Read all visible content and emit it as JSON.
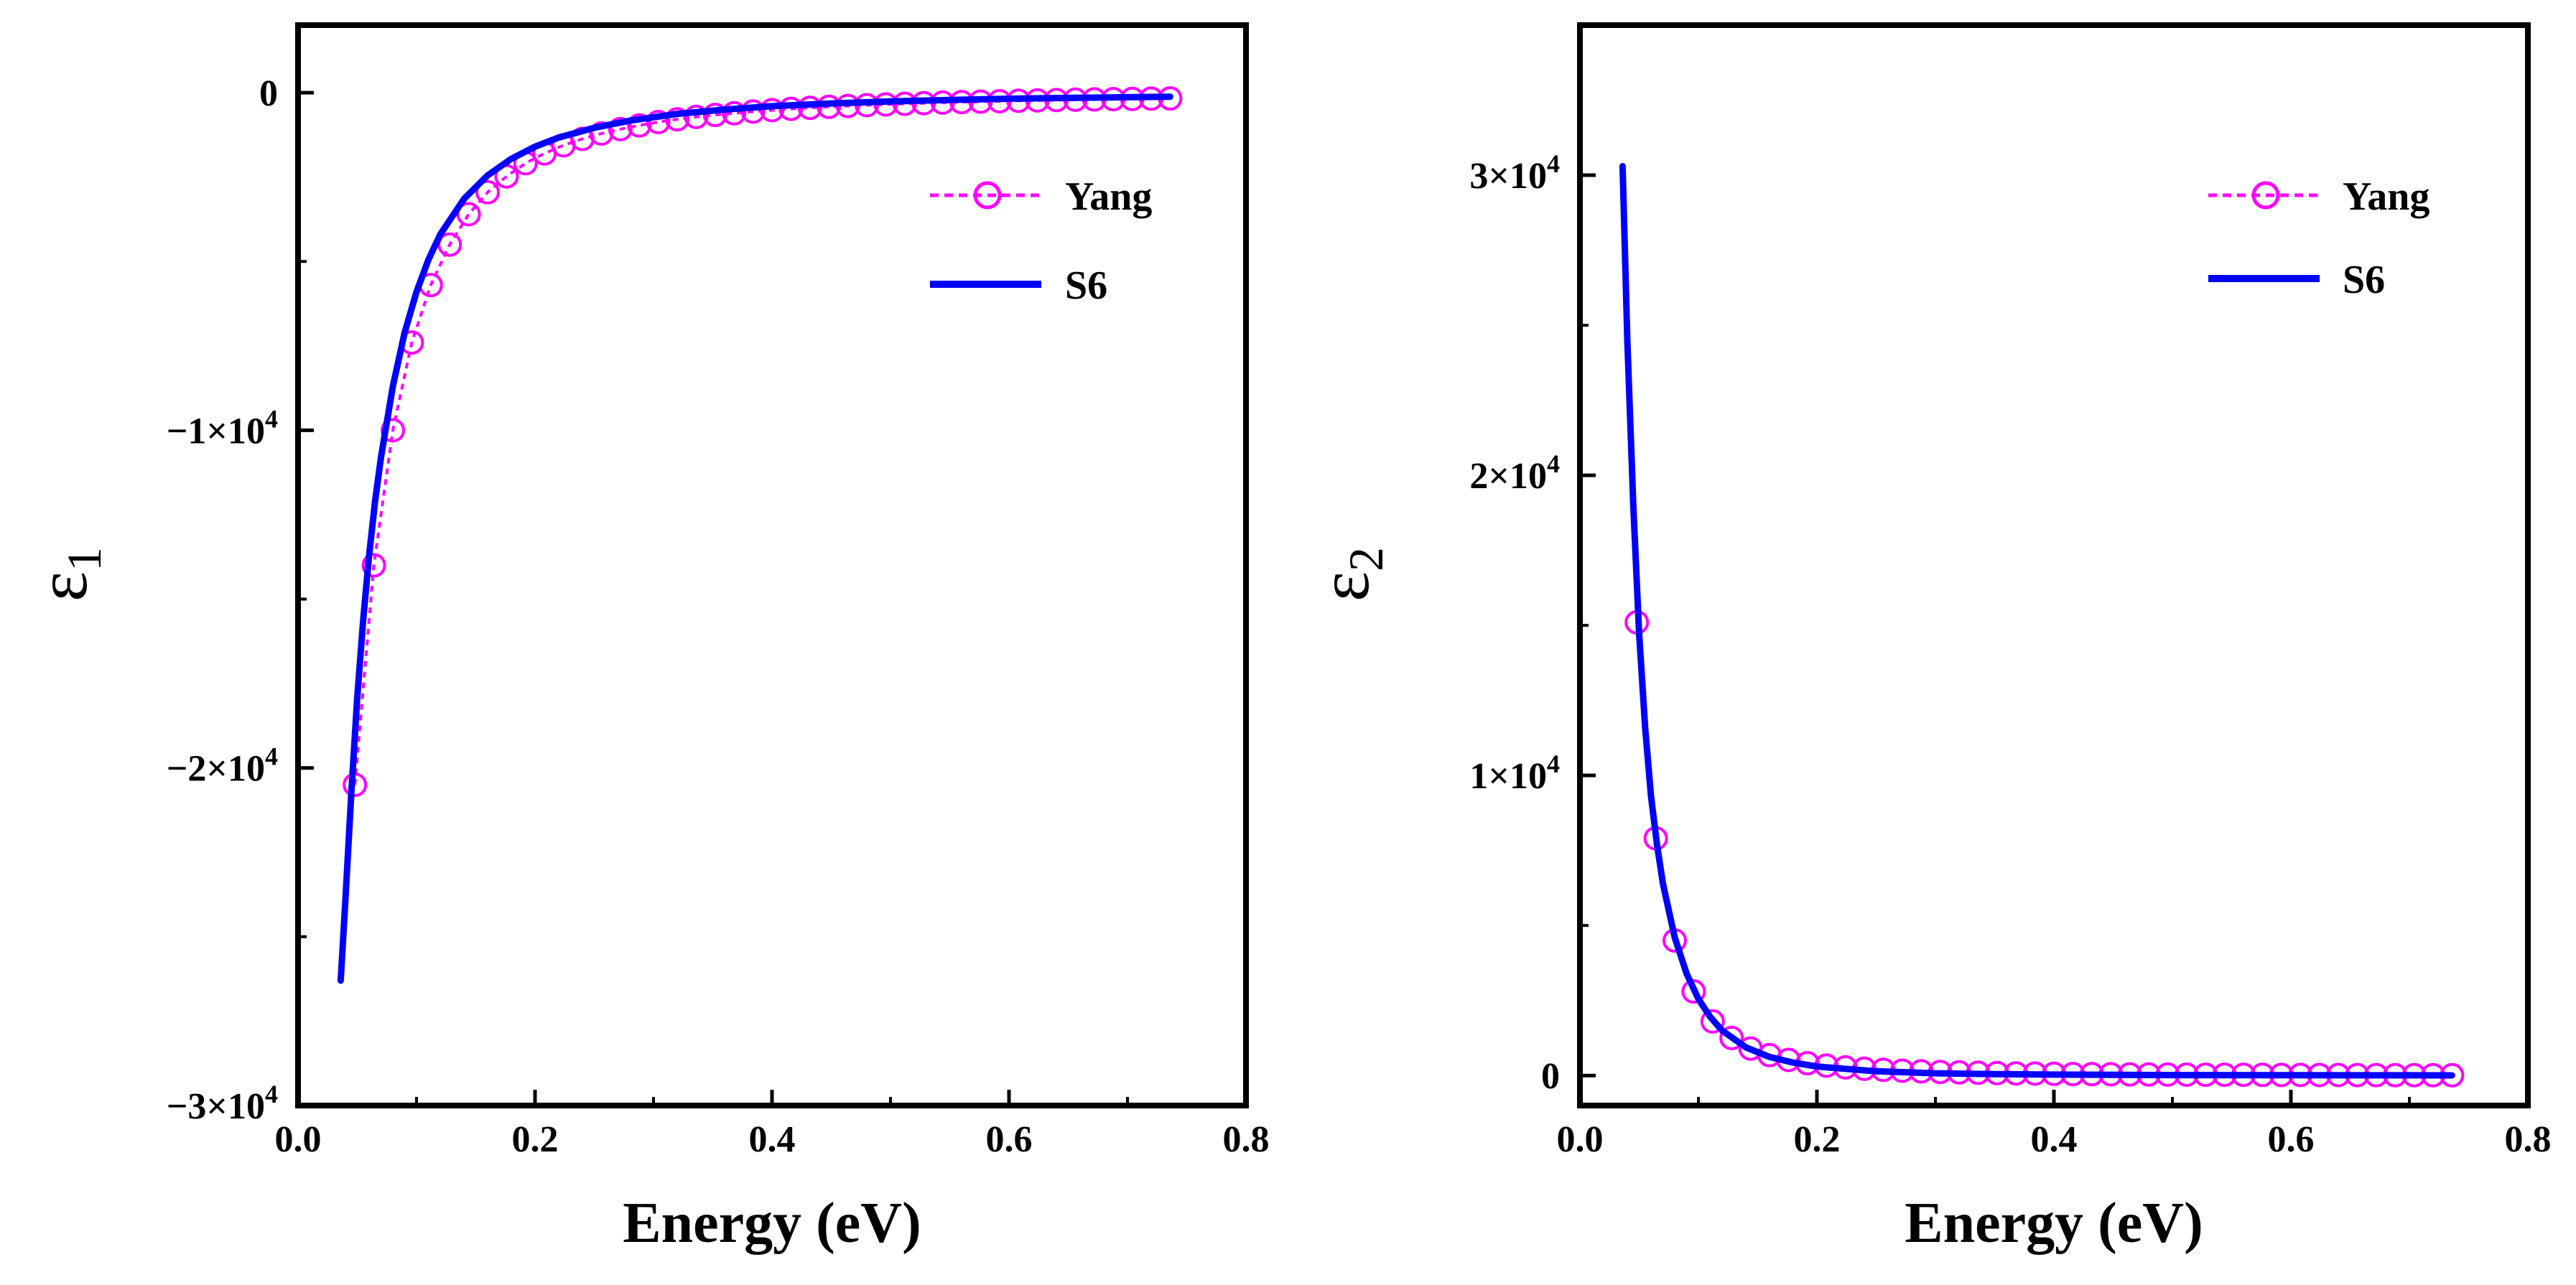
{
  "chart_data": [
    {
      "type": "line",
      "panel": "left",
      "title": "",
      "xlabel": "Energy (eV)",
      "ylabel": {
        "symbol": "ε",
        "subscript": "1"
      },
      "xlim": [
        0,
        0.8
      ],
      "ylim": [
        -30000,
        2000
      ],
      "x_ticks": [
        0.0,
        0.2,
        0.4,
        0.6,
        0.8
      ],
      "x_tick_labels": [
        "0.0",
        "0.2",
        "0.4",
        "0.6",
        "0.8"
      ],
      "y_ticks": [
        0,
        -10000,
        -20000,
        -30000
      ],
      "y_tick_labels": [
        {
          "base": "0",
          "exp": ""
        },
        {
          "base": "−1×10",
          "exp": "4"
        },
        {
          "base": "−2×10",
          "exp": "4"
        },
        {
          "base": "−3×10",
          "exp": "4"
        }
      ],
      "legend_position": "top-right",
      "colors": {
        "Yang": "#ff00ff",
        "S6": "#0000ff"
      },
      "series": [
        {
          "name": "Yang",
          "style": "dotted-circles",
          "x": [
            0.048,
            0.064,
            0.08,
            0.096,
            0.112,
            0.128,
            0.144,
            0.16,
            0.176,
            0.192,
            0.208,
            0.224,
            0.24,
            0.256,
            0.272,
            0.288,
            0.304,
            0.32,
            0.336,
            0.352,
            0.368,
            0.384,
            0.4,
            0.416,
            0.432,
            0.448,
            0.464,
            0.48,
            0.496,
            0.512,
            0.528,
            0.544,
            0.56,
            0.576,
            0.592,
            0.608,
            0.624,
            0.64,
            0.656,
            0.672,
            0.688,
            0.704,
            0.72,
            0.736
          ],
          "values": [
            -20500,
            -14000,
            -10000,
            -7400,
            -5700,
            -4500,
            -3600,
            -2950,
            -2480,
            -2090,
            -1800,
            -1560,
            -1370,
            -1210,
            -1080,
            -970,
            -870,
            -790,
            -720,
            -660,
            -610,
            -560,
            -520,
            -480,
            -450,
            -420,
            -395,
            -370,
            -350,
            -330,
            -312,
            -295,
            -280,
            -266,
            -253,
            -241,
            -230,
            -220,
            -210,
            -201,
            -193,
            -185,
            -178,
            -171
          ]
        },
        {
          "name": "S6",
          "style": "solid",
          "x": [
            0.036,
            0.04,
            0.045,
            0.05,
            0.055,
            0.06,
            0.065,
            0.07,
            0.08,
            0.09,
            0.1,
            0.11,
            0.12,
            0.14,
            0.16,
            0.18,
            0.2,
            0.22,
            0.25,
            0.28,
            0.32,
            0.36,
            0.4,
            0.45,
            0.5,
            0.55,
            0.6,
            0.65,
            0.7,
            0.736
          ],
          "values": [
            -26300,
            -23900,
            -20700,
            -17900,
            -15600,
            -13700,
            -12100,
            -10800,
            -8700,
            -7100,
            -5900,
            -4950,
            -4200,
            -3150,
            -2450,
            -1960,
            -1600,
            -1330,
            -1040,
            -830,
            -630,
            -500,
            -400,
            -320,
            -260,
            -215,
            -180,
            -155,
            -135,
            -120
          ]
        }
      ]
    },
    {
      "type": "line",
      "panel": "right",
      "title": "",
      "xlabel": "Energy (eV)",
      "ylabel": {
        "symbol": "ε",
        "subscript": "2"
      },
      "xlim": [
        0,
        0.8
      ],
      "ylim": [
        -1000,
        35000
      ],
      "x_ticks": [
        0.0,
        0.2,
        0.4,
        0.6,
        0.8
      ],
      "x_tick_labels": [
        "0.0",
        "0.2",
        "0.4",
        "0.6",
        "0.8"
      ],
      "y_ticks": [
        0,
        10000,
        20000,
        30000
      ],
      "y_tick_labels": [
        {
          "base": "0",
          "exp": ""
        },
        {
          "base": "1×10",
          "exp": "4"
        },
        {
          "base": "2×10",
          "exp": "4"
        },
        {
          "base": "3×10",
          "exp": "4"
        }
      ],
      "legend_position": "top-right",
      "colors": {
        "Yang": "#ff00ff",
        "S6": "#0000ff"
      },
      "series": [
        {
          "name": "Yang",
          "style": "dotted-circles",
          "x": [
            0.048,
            0.064,
            0.08,
            0.096,
            0.112,
            0.128,
            0.144,
            0.16,
            0.176,
            0.192,
            0.208,
            0.224,
            0.24,
            0.256,
            0.272,
            0.288,
            0.304,
            0.32,
            0.336,
            0.352,
            0.368,
            0.384,
            0.4,
            0.416,
            0.432,
            0.448,
            0.464,
            0.48,
            0.496,
            0.512,
            0.528,
            0.544,
            0.56,
            0.576,
            0.592,
            0.608,
            0.624,
            0.64,
            0.656,
            0.672,
            0.688,
            0.704,
            0.72,
            0.736
          ],
          "values": [
            15100,
            7900,
            4500,
            2800,
            1800,
            1250,
            900,
            680,
            520,
            410,
            330,
            270,
            225,
            190,
            160,
            138,
            120,
            104,
            92,
            81,
            72,
            64,
            57,
            51,
            46,
            42,
            38,
            35,
            32,
            29,
            27,
            25,
            23,
            21,
            20,
            18,
            17,
            16,
            15,
            14,
            13,
            12,
            11,
            10
          ]
        },
        {
          "name": "S6",
          "style": "solid",
          "x": [
            0.036,
            0.04,
            0.045,
            0.05,
            0.055,
            0.06,
            0.065,
            0.07,
            0.08,
            0.09,
            0.1,
            0.11,
            0.12,
            0.14,
            0.16,
            0.18,
            0.2,
            0.25,
            0.3,
            0.35,
            0.4,
            0.5,
            0.6,
            0.7,
            0.736
          ],
          "values": [
            30300,
            24500,
            19000,
            14700,
            11600,
            9300,
            7700,
            6400,
            4600,
            3400,
            2550,
            1950,
            1500,
            940,
            620,
            430,
            300,
            140,
            75,
            45,
            30,
            15,
            9,
            6,
            5
          ]
        }
      ]
    }
  ]
}
